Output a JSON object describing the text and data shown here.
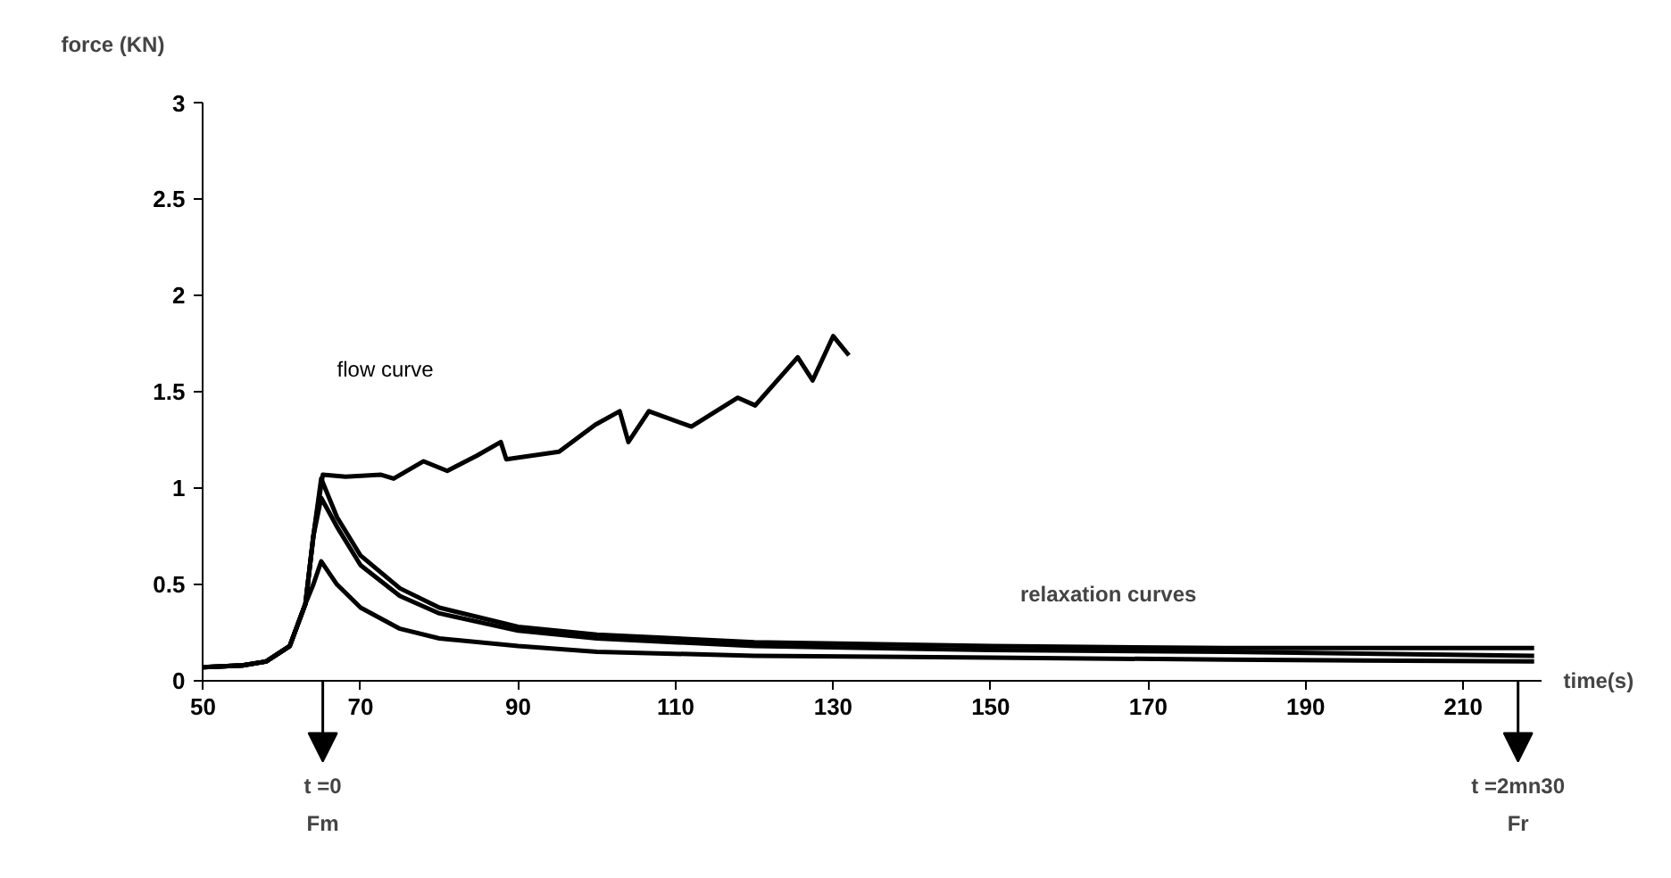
{
  "chart_data": {
    "type": "line",
    "xlabel": "time(s)",
    "ylabel": "force (KN)",
    "xlim": [
      50,
      220
    ],
    "xticks": [
      50,
      70,
      90,
      110,
      130,
      150,
      170,
      190,
      210
    ],
    "ylim": [
      0,
      3
    ],
    "yticks": [
      0,
      0.5,
      1,
      1.5,
      2,
      2.5,
      3
    ],
    "grid": false,
    "marker": "none",
    "line_style": "solid",
    "series": [
      {
        "name": "flow curve",
        "color": "#000000",
        "x": [
          50,
          55,
          58,
          61,
          63,
          64,
          65.2,
          68.1,
          72.6,
          74.2,
          78,
          81,
          84.8,
          87.8,
          88.5,
          95.2,
          99.8,
          102.9,
          104,
          106.6,
          112,
          117.9,
          120.1,
          125.5,
          127.4,
          130,
          132
        ],
        "values": [
          0.07,
          0.08,
          0.1,
          0.18,
          0.4,
          0.75,
          1.07,
          1.06,
          1.07,
          1.05,
          1.14,
          1.09,
          1.17,
          1.24,
          1.15,
          1.19,
          1.33,
          1.4,
          1.24,
          1.4,
          1.32,
          1.47,
          1.43,
          1.68,
          1.56,
          1.79,
          1.69
        ]
      },
      {
        "color": "#000000",
        "x": [
          50,
          55,
          58,
          61,
          63,
          64,
          65,
          67,
          70,
          75,
          80,
          90,
          100,
          120,
          150,
          180,
          219
        ],
        "values": [
          0.07,
          0.08,
          0.1,
          0.18,
          0.4,
          0.75,
          1.05,
          0.85,
          0.65,
          0.48,
          0.38,
          0.28,
          0.24,
          0.2,
          0.18,
          0.17,
          0.17
        ]
      },
      {
        "color": "#000000",
        "x": [
          50,
          55,
          58,
          61,
          63,
          64,
          65,
          67,
          70,
          75,
          80,
          90,
          100,
          120,
          150,
          180,
          219
        ],
        "values": [
          0.07,
          0.08,
          0.1,
          0.18,
          0.4,
          0.75,
          0.95,
          0.8,
          0.6,
          0.44,
          0.35,
          0.26,
          0.22,
          0.18,
          0.16,
          0.15,
          0.13
        ]
      },
      {
        "color": "#000000",
        "x": [
          50,
          55,
          58,
          61,
          63,
          64,
          65,
          67,
          70,
          75,
          80,
          90,
          100,
          120,
          150,
          180,
          219
        ],
        "values": [
          0.07,
          0.08,
          0.1,
          0.18,
          0.4,
          0.5,
          0.62,
          0.5,
          0.38,
          0.27,
          0.22,
          0.18,
          0.15,
          0.13,
          0.12,
          0.11,
          0.1
        ]
      }
    ],
    "annotations": [
      "relaxation curves",
      "t =0\nFm",
      "t =2mn30\nFr"
    ]
  }
}
